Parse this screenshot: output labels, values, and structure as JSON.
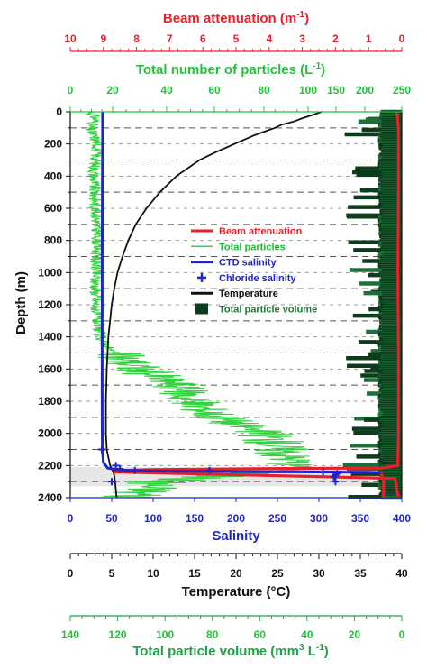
{
  "chart_data": {
    "type": "line",
    "y_axis": {
      "label": "Depth (m)",
      "range": [
        0,
        2400
      ],
      "ticks": [
        0,
        200,
        400,
        600,
        800,
        1000,
        1200,
        1400,
        1600,
        1800,
        2000,
        2200,
        2400
      ],
      "tick_labels": [
        "0",
        "200",
        "400",
        "600",
        "800",
        "1000",
        "1200",
        "1400",
        "1600",
        "1800",
        "2000",
        "2200",
        "2400"
      ],
      "inverted": true
    },
    "x_axes": [
      {
        "id": "beam",
        "title_main": "Beam attenuation (m",
        "title_sup": "-1",
        "title_end": ")",
        "color": "#e8202a",
        "range": [
          10,
          0
        ],
        "ticks": [
          10,
          9,
          8,
          7,
          6,
          5,
          4,
          3,
          2,
          1,
          0
        ],
        "tick_labels": [
          "10",
          "9",
          "8",
          "7",
          "6",
          "5",
          "4",
          "3",
          "2",
          "1",
          "0"
        ],
        "position": "top"
      },
      {
        "id": "particles",
        "title_main": "Total number of particles (L",
        "title_sup": "-1",
        "title_end": ")",
        "color": "#22c33a",
        "scale": "broken",
        "ticks": [
          0,
          20,
          40,
          60,
          80,
          100,
          150,
          200,
          250
        ],
        "tick_labels": [
          "0",
          "20",
          "40",
          "60",
          "80",
          "100",
          "150",
          "200",
          "250"
        ],
        "position": "top"
      },
      {
        "id": "salinity",
        "title": "Salinity",
        "color": "#1f25c8",
        "range": [
          0,
          400
        ],
        "ticks": [
          0,
          50,
          100,
          150,
          200,
          250,
          300,
          350,
          400
        ],
        "tick_labels": [
          "0",
          "50",
          "100",
          "150",
          "200",
          "250",
          "300",
          "350",
          "400"
        ],
        "position": "bottom"
      },
      {
        "id": "temperature",
        "title": "Temperature (°C)",
        "color": "#111111",
        "range": [
          0,
          40
        ],
        "ticks": [
          0,
          5,
          10,
          15,
          20,
          25,
          30,
          35,
          40
        ],
        "tick_labels": [
          "0",
          "5",
          "10",
          "15",
          "20",
          "25",
          "30",
          "35",
          "40"
        ],
        "position": "bottom"
      },
      {
        "id": "volume",
        "title_main": "Total particle volume (mm",
        "title_sup": "3",
        "title_end": " L",
        "title_sup2": "-1",
        "title_end2": ")",
        "color": "#22a04a",
        "range": [
          140,
          0
        ],
        "ticks": [
          140,
          120,
          100,
          80,
          60,
          40,
          20,
          0
        ],
        "tick_labels": [
          "140",
          "120",
          "100",
          "80",
          "60",
          "40",
          "20",
          "0"
        ],
        "position": "bottom"
      }
    ],
    "legend": {
      "placement": "center-right",
      "entries": [
        {
          "label": "Beam attenuation",
          "color": "#e8202a",
          "kind": "line"
        },
        {
          "label": "Total particles",
          "color": "#34d140",
          "kind": "line"
        },
        {
          "label": "CTD salinity",
          "color": "#1f25c8",
          "kind": "line"
        },
        {
          "label": "Chloride salinity",
          "color": "#1f25c8",
          "kind": "cross"
        },
        {
          "label": "Temperature",
          "color": "#111111",
          "kind": "line"
        },
        {
          "label": "Total particle volume",
          "color": "#0b3d1c",
          "kind": "box"
        }
      ]
    },
    "grid": {
      "horizontal_dashed_every_m": 100,
      "vertical": false
    },
    "shaded_band_depth": [
      2210,
      2330
    ],
    "series": [
      {
        "name": "Temperature",
        "axis": "temperature",
        "color": "#111111",
        "depth": [
          0,
          20,
          40,
          60,
          80,
          100,
          120,
          150,
          200,
          250,
          300,
          400,
          500,
          600,
          700,
          800,
          900,
          1000,
          1100,
          1200,
          1400,
          1600,
          1800,
          2000,
          2100,
          2200,
          2230,
          2260,
          2300,
          2350,
          2400
        ],
        "values": [
          30.3,
          29.2,
          28.0,
          27.0,
          25.5,
          24.7,
          23.6,
          22.0,
          19.8,
          17.6,
          15.6,
          12.8,
          10.8,
          9.2,
          7.9,
          7.0,
          6.3,
          5.7,
          5.3,
          5.0,
          4.6,
          4.4,
          4.3,
          4.3,
          4.4,
          4.8,
          5.1,
          5.3,
          5.4,
          5.5,
          5.6
        ]
      },
      {
        "name": "CTD salinity",
        "axis": "salinity",
        "color": "#1f25c8",
        "depth": [
          0,
          200,
          400,
          600,
          800,
          1000,
          1200,
          1400,
          1600,
          1800,
          2000,
          2100,
          2180,
          2215,
          2225,
          2230,
          2235,
          2238,
          2240,
          2242,
          2245
        ],
        "values": [
          39,
          39,
          38.8,
          38.7,
          38.6,
          38.5,
          38.5,
          38.5,
          38.5,
          38.5,
          38.6,
          38.8,
          40,
          45,
          55,
          70,
          110,
          200,
          300,
          360,
          375
        ]
      },
      {
        "name": "Chloride salinity",
        "axis": "salinity",
        "color": "#1f25c8",
        "kind": "cross",
        "depth": [
          2100,
          2200,
          2220,
          2230,
          2230,
          2240,
          2250,
          2260,
          2270,
          2300,
          2300
        ],
        "values": [
          38,
          55,
          60,
          78,
          168,
          305,
          322,
          320,
          318,
          50,
          320
        ]
      },
      {
        "name": "Beam attenuation",
        "axis": "beam",
        "color": "#e8202a",
        "depth": [
          0,
          100,
          500,
          1000,
          1500,
          2000,
          2200,
          2215,
          2220,
          2225,
          2230,
          2240,
          2280,
          2350,
          2400
        ],
        "values": [
          0.15,
          0.1,
          0.1,
          0.12,
          0.1,
          0.1,
          0.12,
          0.6,
          4.5,
          7.6,
          8.5,
          8.7,
          0.2,
          0.15,
          0.1
        ]
      },
      {
        "name": "Total particles",
        "axis": "particles",
        "color": "#34d140",
        "depth": [
          0,
          50,
          100,
          200,
          400,
          600,
          800,
          1000,
          1200,
          1400,
          1500,
          1600,
          1700,
          1800,
          1900,
          2000,
          2050,
          2100,
          2150,
          2200,
          2230,
          2260,
          2300,
          2350,
          2400
        ],
        "values": [
          10,
          12,
          9,
          13,
          11,
          12,
          13,
          12,
          12,
          14,
          20,
          30,
          45,
          50,
          62,
          80,
          85,
          88,
          92,
          96,
          94,
          64,
          38,
          32,
          28
        ]
      },
      {
        "name": "Total particle volume",
        "axis": "volume",
        "color": "#0b3d1c",
        "kind": "filled",
        "depth": [
          0,
          400,
          800,
          1200,
          1600,
          2000,
          2200,
          2400
        ],
        "values": [
          9,
          9,
          9,
          9,
          9,
          9,
          9,
          9
        ]
      }
    ]
  }
}
